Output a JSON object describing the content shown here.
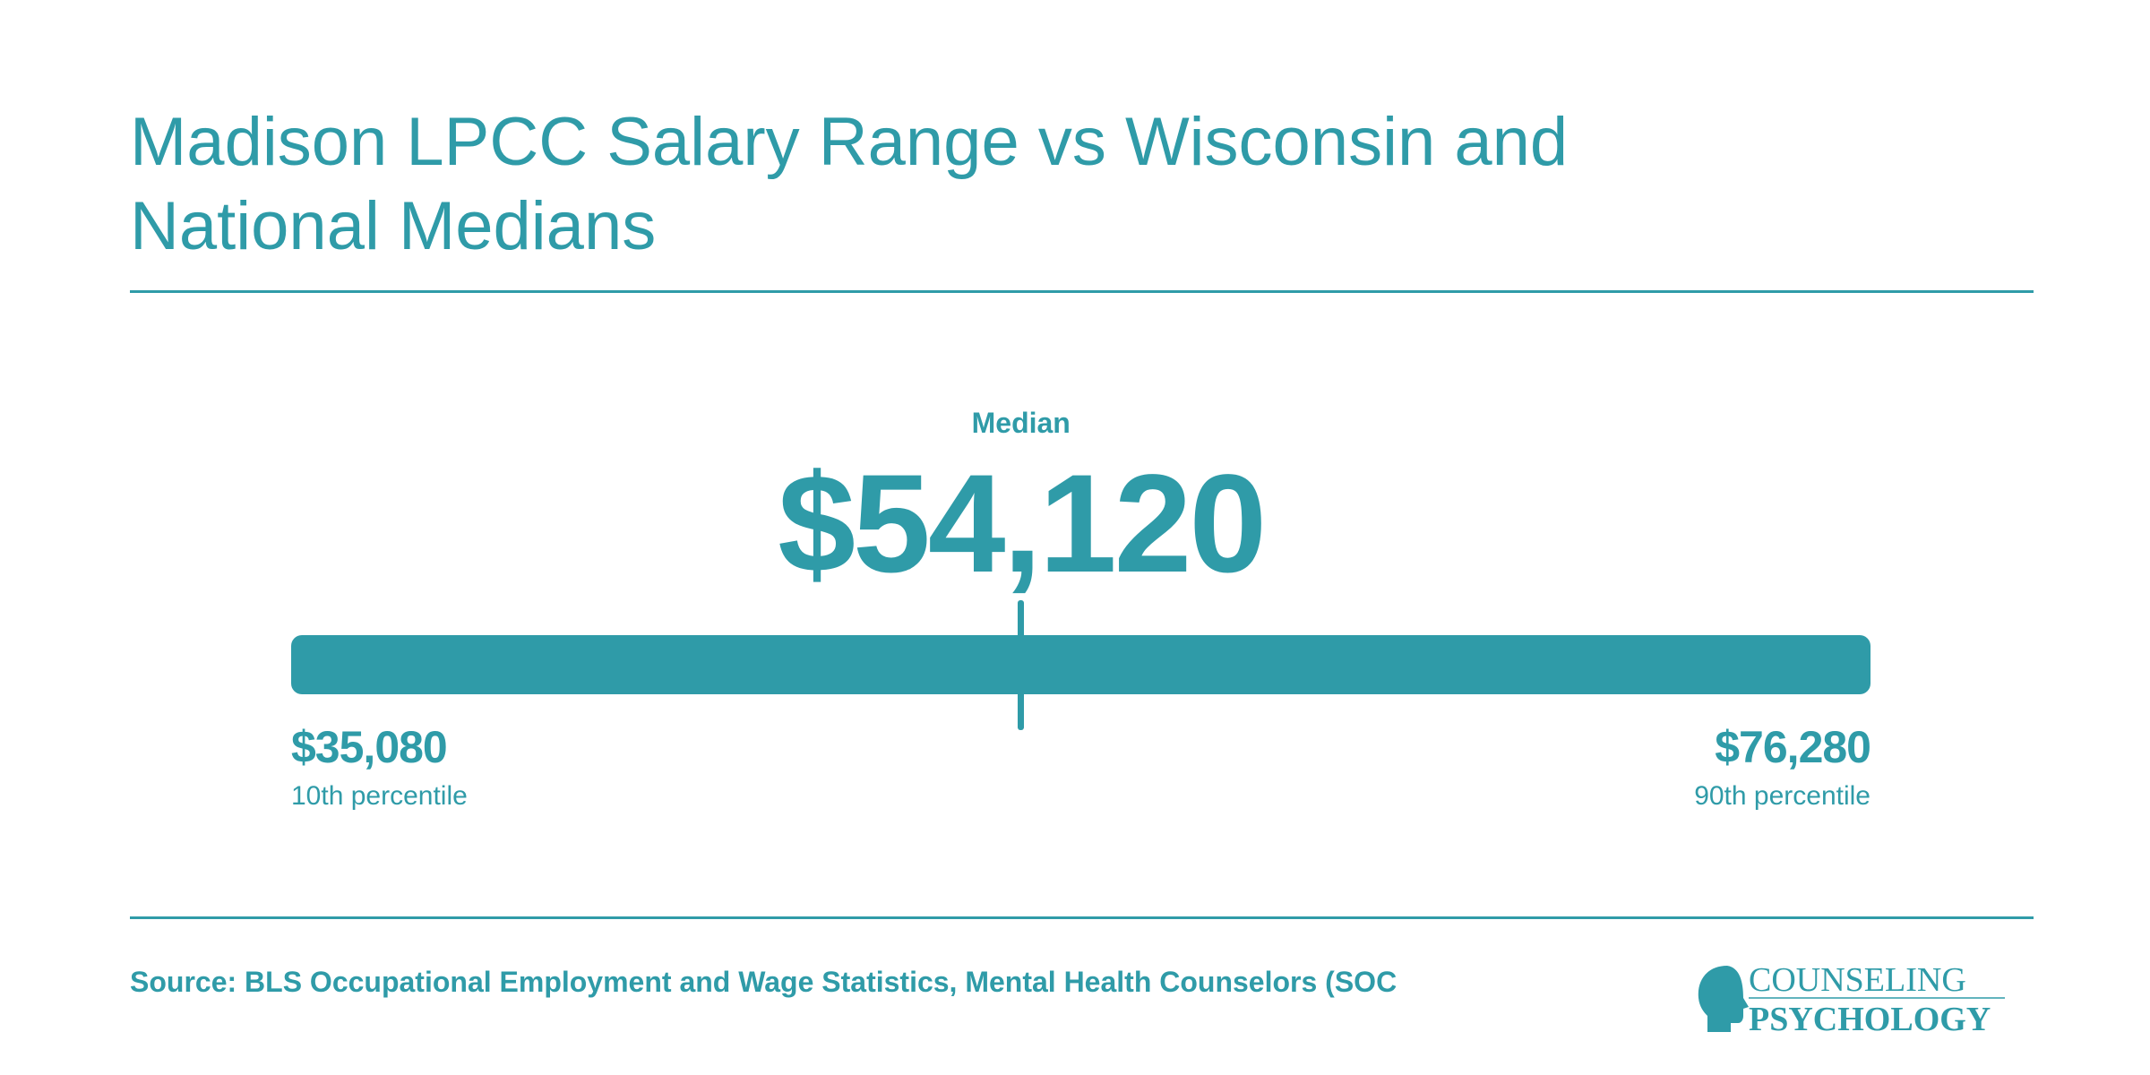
{
  "title": "Madison LPCC Salary Range vs Wisconsin and National Medians",
  "chart_data": {
    "type": "range",
    "title": "Madison LPCC Salary Range vs Wisconsin and National Medians",
    "median": {
      "label": "Median",
      "value": 54120,
      "display": "$54,120"
    },
    "low": {
      "label": "10th percentile",
      "value": 35080,
      "display": "$35,080"
    },
    "high": {
      "label": "90th percentile",
      "value": 76280,
      "display": "$76,280"
    }
  },
  "source": "Source: BLS Occupational Employment and Wage Statistics, Mental Health Counselors (SOC",
  "logo": {
    "line1": "COUNSELING",
    "line2": "PSYCHOLOGY",
    "icon": "head-profile-icon"
  },
  "colors": {
    "accent": "#2f9ba8"
  }
}
